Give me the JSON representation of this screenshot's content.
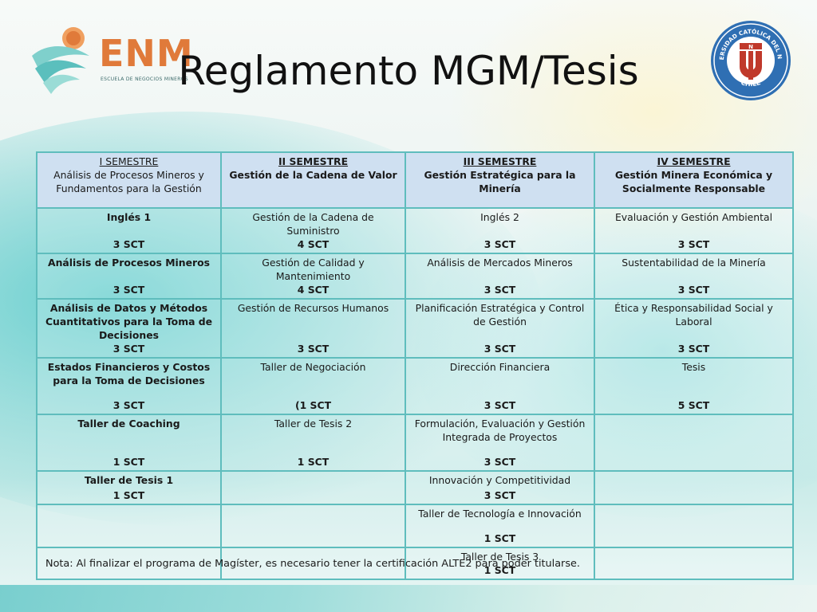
{
  "slide": {
    "title": "Reglamento MGM/Tesis",
    "logo_text": "ENM",
    "logo_subtitle": "ESCUELA DE NEGOCIOS MINEROS",
    "seal_text_top": "UNIVERSIDAD CATÓLICA DEL NORTE",
    "seal_text_bottom": "CHILE",
    "seal_letters": "N U"
  },
  "table": {
    "headers": [
      {
        "semester": "I SEMESTRE",
        "subtitle": "Análisis de Procesos Mineros y Fundamentos para la Gestión"
      },
      {
        "semester": "II SEMESTRE",
        "subtitle": "Gestión de la Cadena de Valor"
      },
      {
        "semester": "III SEMESTRE",
        "subtitle": "Gestión Estratégica  para la Minería"
      },
      {
        "semester": "IV SEMESTRE",
        "subtitle": "Gestión Minera Económica y Socialmente Responsable"
      }
    ],
    "rows": [
      [
        {
          "name": "Inglés 1",
          "sct": "3 SCT"
        },
        {
          "name": "Gestión de la Cadena de Suministro",
          "sct": "4 SCT"
        },
        {
          "name": "Inglés 2",
          "sct": "3 SCT"
        },
        {
          "name": "Evaluación y Gestión Ambiental",
          "sct": "3 SCT"
        }
      ],
      [
        {
          "name": "Análisis de Procesos Mineros",
          "sct": "3 SCT"
        },
        {
          "name": "Gestión de Calidad y Mantenimiento",
          "sct": "4 SCT"
        },
        {
          "name": "Análisis de Mercados Mineros",
          "sct": "3 SCT"
        },
        {
          "name": "Sustentabilidad de la Minería",
          "sct": "3 SCT"
        }
      ],
      [
        {
          "name": "Análisis de Datos y Métodos Cuantitativos para la Toma de Decisiones",
          "sct": "3 SCT"
        },
        {
          "name": "Gestión de Recursos Humanos",
          "sct": "3 SCT"
        },
        {
          "name": "Planificación Estratégica y Control de Gestión",
          "sct": "3 SCT"
        },
        {
          "name": "Ética y Responsabilidad Social y Laboral",
          "sct": "3 SCT"
        }
      ],
      [
        {
          "name": "Estados Financieros y Costos para la Toma de Decisiones",
          "sct": "3 SCT"
        },
        {
          "name": "Taller de Negociación",
          "sct": "(1 SCT"
        },
        {
          "name": "Dirección Financiera",
          "sct": "3 SCT"
        },
        {
          "name": "Tesis",
          "sct": "5 SCT"
        }
      ],
      [
        {
          "name": "Taller de Coaching",
          "sct": "1 SCT"
        },
        {
          "name": "Taller de Tesis 2",
          "sct": "1 SCT"
        },
        {
          "name": "Formulación, Evaluación y Gestión Integrada de Proyectos",
          "sct": "3 SCT"
        },
        {
          "name": "",
          "sct": ""
        }
      ],
      [
        {
          "name": "Taller de Tesis 1",
          "sct": "1 SCT"
        },
        {
          "name": "",
          "sct": ""
        },
        {
          "name": "Innovación y Competitividad",
          "sct": "3 SCT"
        },
        {
          "name": "",
          "sct": ""
        }
      ],
      [
        {
          "name": "",
          "sct": ""
        },
        {
          "name": "",
          "sct": ""
        },
        {
          "name": "Taller de Tecnología e Innovación",
          "sct": "1 SCT"
        },
        {
          "name": "",
          "sct": ""
        }
      ],
      [
        {
          "name": "",
          "sct": ""
        },
        {
          "name": "",
          "sct": ""
        },
        {
          "name": "Taller de Tesis 3",
          "sct": "1 SCT"
        },
        {
          "name": "",
          "sct": ""
        }
      ]
    ]
  },
  "note": "Nota: Al finalizar el programa de Magíster, es necesario tener la certificación ALTE2  para poder titularse.",
  "colors": {
    "logo_orange": "#e07a3a",
    "header_fill": "#cfe0f1",
    "table_border": "#5fbdbd",
    "seal_blue": "#2f6fb3"
  }
}
